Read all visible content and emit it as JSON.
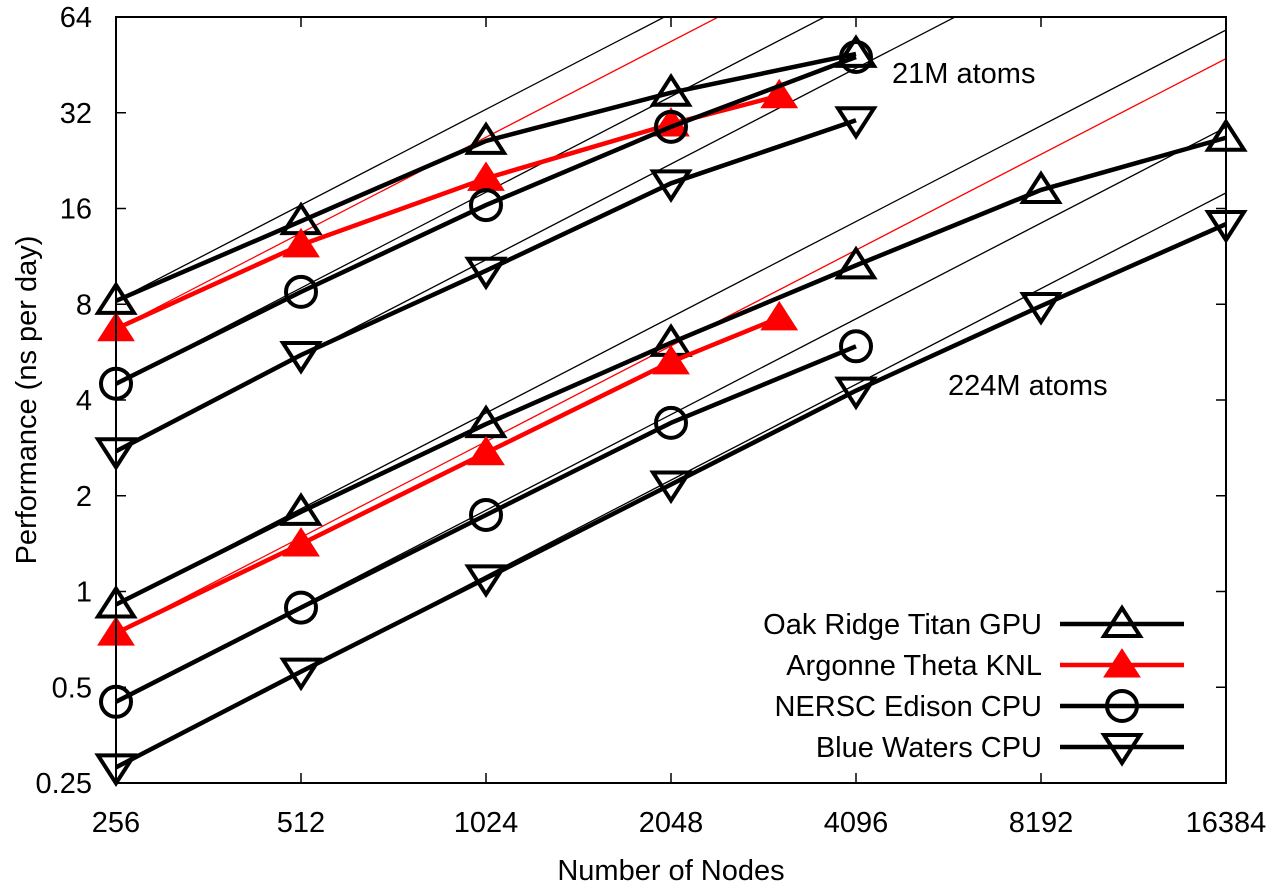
{
  "chart_data": {
    "type": "line",
    "title": "",
    "xlabel": "Number of Nodes",
    "ylabel": "Performance (ns per day)",
    "xscale": "log2",
    "yscale": "log2",
    "xlim": [
      256,
      16384
    ],
    "ylim": [
      0.25,
      64
    ],
    "xticks": [
      256,
      512,
      1024,
      2048,
      4096,
      8192,
      16384
    ],
    "xtick_labels": [
      "256",
      "512",
      "1024",
      "2048",
      "4096",
      "8192",
      "16384"
    ],
    "yticks": [
      0.25,
      0.5,
      1,
      2,
      4,
      8,
      16,
      32,
      64
    ],
    "ytick_labels": [
      "0.25",
      "0.5",
      "1",
      "2",
      "4",
      "8",
      "16",
      "32",
      "64"
    ],
    "grid": false,
    "legend_position": "bottom-right",
    "ideal_scaling_lines": true,
    "annotations": [
      {
        "text": "21M atoms",
        "near": "top-right of 21M group"
      },
      {
        "text": "224M atoms",
        "near": "right of 224M group"
      }
    ],
    "series": [
      {
        "name": "Oak Ridge Titan GPU",
        "group": "21M atoms",
        "marker": "triangle-up-open",
        "color": "#000000",
        "legend": true,
        "x": [
          256,
          512,
          1024,
          2048,
          4096
        ],
        "y": [
          8.2,
          14.6,
          26.1,
          37.0,
          49.0
        ]
      },
      {
        "name": "Argonne Theta KNL",
        "group": "21M atoms",
        "marker": "triangle-up-filled",
        "color": "#ff0000",
        "legend": true,
        "x": [
          256,
          512,
          1024,
          2048,
          3072
        ],
        "y": [
          6.7,
          12.3,
          19.9,
          29.5,
          36.2
        ]
      },
      {
        "name": "NERSC Edison CPU",
        "group": "21M atoms",
        "marker": "circle-open",
        "color": "#000000",
        "legend": true,
        "x": [
          256,
          512,
          1024,
          2048,
          4096
        ],
        "y": [
          4.5,
          8.75,
          16.4,
          28.9,
          47.9
        ]
      },
      {
        "name": "Blue Waters CPU",
        "group": "21M atoms",
        "marker": "triangle-down-open",
        "color": "#000000",
        "legend": true,
        "x": [
          256,
          512,
          1024,
          2048,
          4096
        ],
        "y": [
          2.76,
          5.54,
          10.2,
          19.2,
          30.3
        ]
      },
      {
        "name": "Oak Ridge Titan GPU",
        "group": "224M atoms",
        "marker": "triangle-up-open",
        "color": "#000000",
        "legend": false,
        "x": [
          256,
          512,
          1024,
          2048,
          4096,
          8192,
          16384
        ],
        "y": [
          0.91,
          1.78,
          3.36,
          6.05,
          10.6,
          18.3,
          26.7
        ]
      },
      {
        "name": "Argonne Theta KNL",
        "group": "224M atoms",
        "marker": "triangle-up-filled",
        "color": "#ff0000",
        "legend": false,
        "x": [
          256,
          512,
          1024,
          2048,
          3072
        ],
        "y": [
          0.74,
          1.41,
          2.73,
          5.27,
          7.25
        ]
      },
      {
        "name": "NERSC Edison CPU",
        "group": "224M atoms",
        "marker": "circle-open",
        "color": "#000000",
        "legend": false,
        "x": [
          256,
          512,
          1024,
          2048,
          4096
        ],
        "y": [
          0.45,
          0.89,
          1.74,
          3.39,
          5.9
        ]
      },
      {
        "name": "Blue Waters CPU",
        "group": "224M atoms",
        "marker": "triangle-down-open",
        "color": "#000000",
        "legend": false,
        "x": [
          256,
          512,
          1024,
          2048,
          4096,
          8192,
          16384
        ],
        "y": [
          0.28,
          0.56,
          1.1,
          2.17,
          4.28,
          7.9,
          14.3
        ]
      }
    ]
  }
}
